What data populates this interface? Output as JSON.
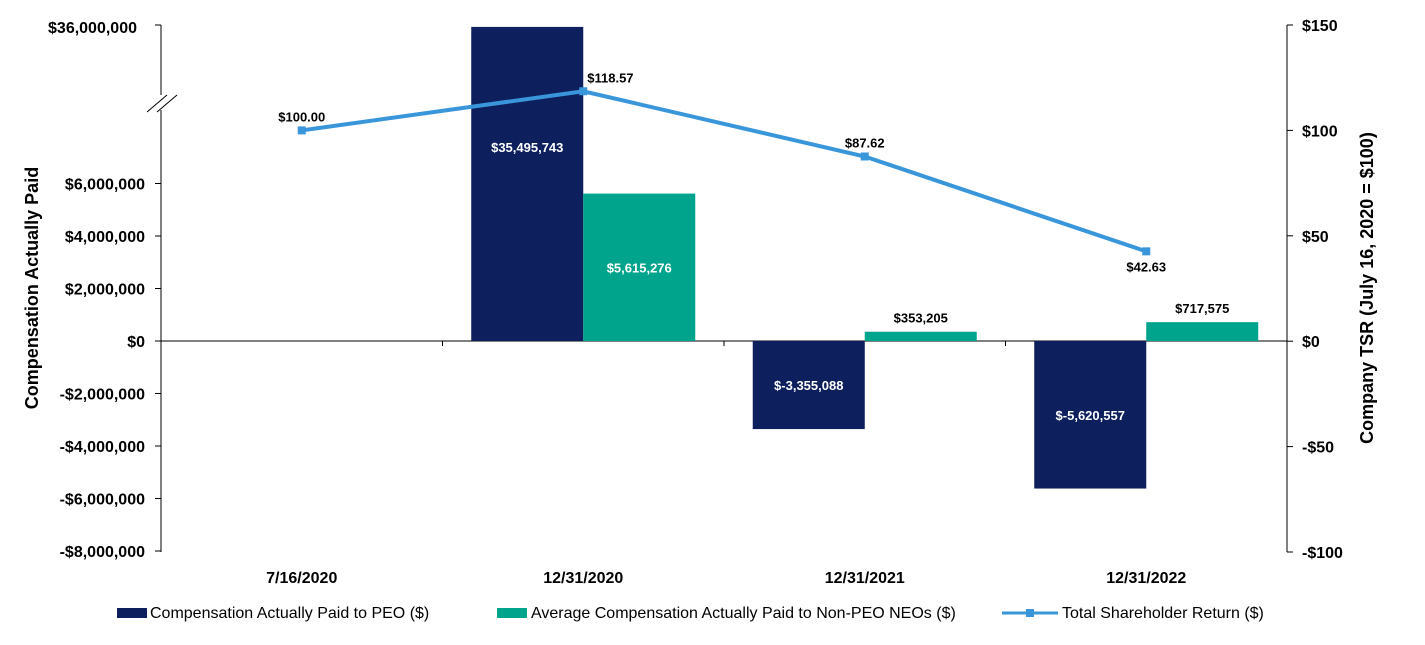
{
  "chart_data": {
    "type": "bar+line",
    "categories": [
      "7/16/2020",
      "12/31/2020",
      "12/31/2021",
      "12/31/2022"
    ],
    "series": [
      {
        "name": "Compensation Actually Paid to PEO ($)",
        "kind": "bar",
        "axis": "left",
        "color": "#0d1f5c",
        "values": [
          null,
          35495743,
          -3355088,
          -5620557
        ],
        "labels": [
          "",
          "$35,495,743",
          "$-3,355,088",
          "$-5,620,557"
        ]
      },
      {
        "name": "Average Compensation Actually Paid to Non-PEO NEOs ($)",
        "kind": "bar",
        "axis": "left",
        "color": "#00a38c",
        "values": [
          null,
          5615276,
          353205,
          717575
        ],
        "labels": [
          "",
          "$5,615,276",
          "$353,205",
          "$717,575"
        ]
      },
      {
        "name": "Total Shareholder Return ($)",
        "kind": "line",
        "axis": "right",
        "color": "#3a96db",
        "values": [
          100.0,
          118.57,
          87.62,
          42.63
        ],
        "labels": [
          "$100.00",
          "$118.57",
          "$87.62",
          "$42.63"
        ]
      }
    ],
    "ylabel_left": "Compensation Actually Paid",
    "ylabel_right": "Company TSR (July 16, 2020 = $100)",
    "left_axis": {
      "ticks": [
        -8000000,
        -6000000,
        -4000000,
        -2000000,
        0,
        2000000,
        4000000,
        6000000
      ],
      "tick_labels": [
        "-$8,000,000",
        "-$6,000,000",
        "-$4,000,000",
        "-$2,000,000",
        "$0",
        "$2,000,000",
        "$4,000,000",
        "$6,000,000"
      ],
      "break_above": 8000000,
      "top_label": "$36,000,000",
      "top_value": 36000000
    },
    "right_axis": {
      "range": [
        -100,
        150
      ],
      "ticks": [
        -100,
        -50,
        0,
        50,
        100,
        150
      ],
      "tick_labels": [
        "-$100",
        "-$50",
        "$0",
        "$50",
        "$100",
        "$150"
      ]
    },
    "legend_position": "bottom",
    "grid": false
  }
}
